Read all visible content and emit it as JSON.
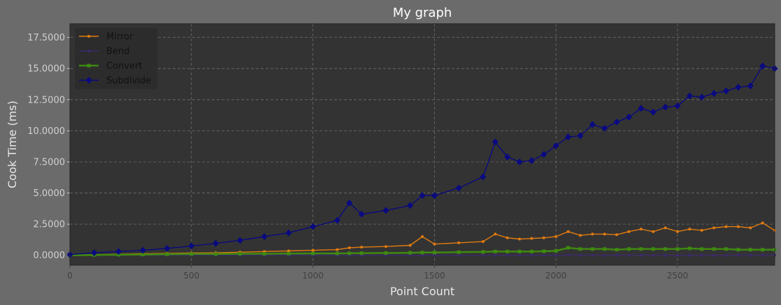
{
  "chart_data": {
    "type": "line",
    "title": "My graph",
    "xlabel": "Point Count",
    "ylabel": "Cook Time (ms)",
    "xlim": [
      0,
      2900
    ],
    "ylim": [
      -0.8,
      18.6
    ],
    "xticks": [
      0,
      500,
      1000,
      1500,
      2000,
      2500
    ],
    "xtick_labels": [
      "0",
      "500",
      "1000",
      "1500",
      "2000",
      "2500"
    ],
    "yticks": [
      0,
      2.5,
      5,
      7.5,
      10,
      12.5,
      15,
      17.5
    ],
    "ytick_labels": [
      "0.0000",
      "2.5000",
      "5.0000",
      "7.5000",
      "10.0000",
      "12.5000",
      "15.0000",
      "17.5000"
    ],
    "grid": true,
    "legend_position": "top-left",
    "x": [
      0,
      100,
      200,
      300,
      400,
      500,
      600,
      700,
      800,
      900,
      1000,
      1100,
      1150,
      1200,
      1300,
      1400,
      1450,
      1500,
      1600,
      1700,
      1750,
      1800,
      1850,
      1900,
      1950,
      2000,
      2050,
      2100,
      2150,
      2200,
      2250,
      2300,
      2350,
      2400,
      2450,
      2500,
      2550,
      2600,
      2650,
      2700,
      2750,
      2800,
      2850,
      2900
    ],
    "series": [
      {
        "name": "Mirror",
        "color": "#e07b10",
        "marker": "dot",
        "values": [
          0,
          0.05,
          0.08,
          0.12,
          0.15,
          0.18,
          0.2,
          0.25,
          0.3,
          0.35,
          0.4,
          0.45,
          0.6,
          0.65,
          0.7,
          0.8,
          1.5,
          0.9,
          1.0,
          1.1,
          1.7,
          1.4,
          1.3,
          1.35,
          1.4,
          1.5,
          1.9,
          1.6,
          1.7,
          1.7,
          1.65,
          1.9,
          2.1,
          1.9,
          2.2,
          1.9,
          2.1,
          2.0,
          2.2,
          2.3,
          2.3,
          2.2,
          2.6,
          2.0
        ]
      },
      {
        "name": "Bend",
        "color": "#3a2a6a",
        "marker": "dot",
        "values": [
          0,
          0,
          0,
          0,
          0,
          0,
          0,
          0,
          0,
          0,
          0,
          0,
          0,
          0,
          0,
          0,
          0,
          0,
          0,
          0,
          0,
          0,
          0,
          0,
          0,
          0,
          0,
          0,
          0,
          0,
          0,
          0,
          0,
          0,
          0,
          0,
          0,
          0,
          0,
          0,
          0,
          0,
          0,
          0
        ]
      },
      {
        "name": "Convert",
        "color": "#3f8a10",
        "marker": "square",
        "values": [
          0,
          0.02,
          0.04,
          0.06,
          0.08,
          0.1,
          0.1,
          0.12,
          0.12,
          0.14,
          0.15,
          0.15,
          0.16,
          0.17,
          0.18,
          0.2,
          0.22,
          0.22,
          0.25,
          0.27,
          0.3,
          0.3,
          0.3,
          0.3,
          0.32,
          0.35,
          0.6,
          0.5,
          0.5,
          0.5,
          0.45,
          0.5,
          0.5,
          0.5,
          0.5,
          0.5,
          0.55,
          0.5,
          0.5,
          0.5,
          0.45,
          0.45,
          0.45,
          0.45
        ]
      },
      {
        "name": "Subdivide",
        "color": "#0a0a80",
        "marker": "diamond",
        "values": [
          0.05,
          0.2,
          0.3,
          0.4,
          0.55,
          0.75,
          0.95,
          1.2,
          1.5,
          1.8,
          2.3,
          2.8,
          4.2,
          3.3,
          3.6,
          4.0,
          4.8,
          4.8,
          5.4,
          6.3,
          9.1,
          7.9,
          7.5,
          7.6,
          8.1,
          8.8,
          9.5,
          9.6,
          10.5,
          10.2,
          10.7,
          11.1,
          11.8,
          11.5,
          11.9,
          12.0,
          12.8,
          12.7,
          13.0,
          13.2,
          13.5,
          13.6,
          15.2,
          15.0
        ]
      }
    ]
  }
}
